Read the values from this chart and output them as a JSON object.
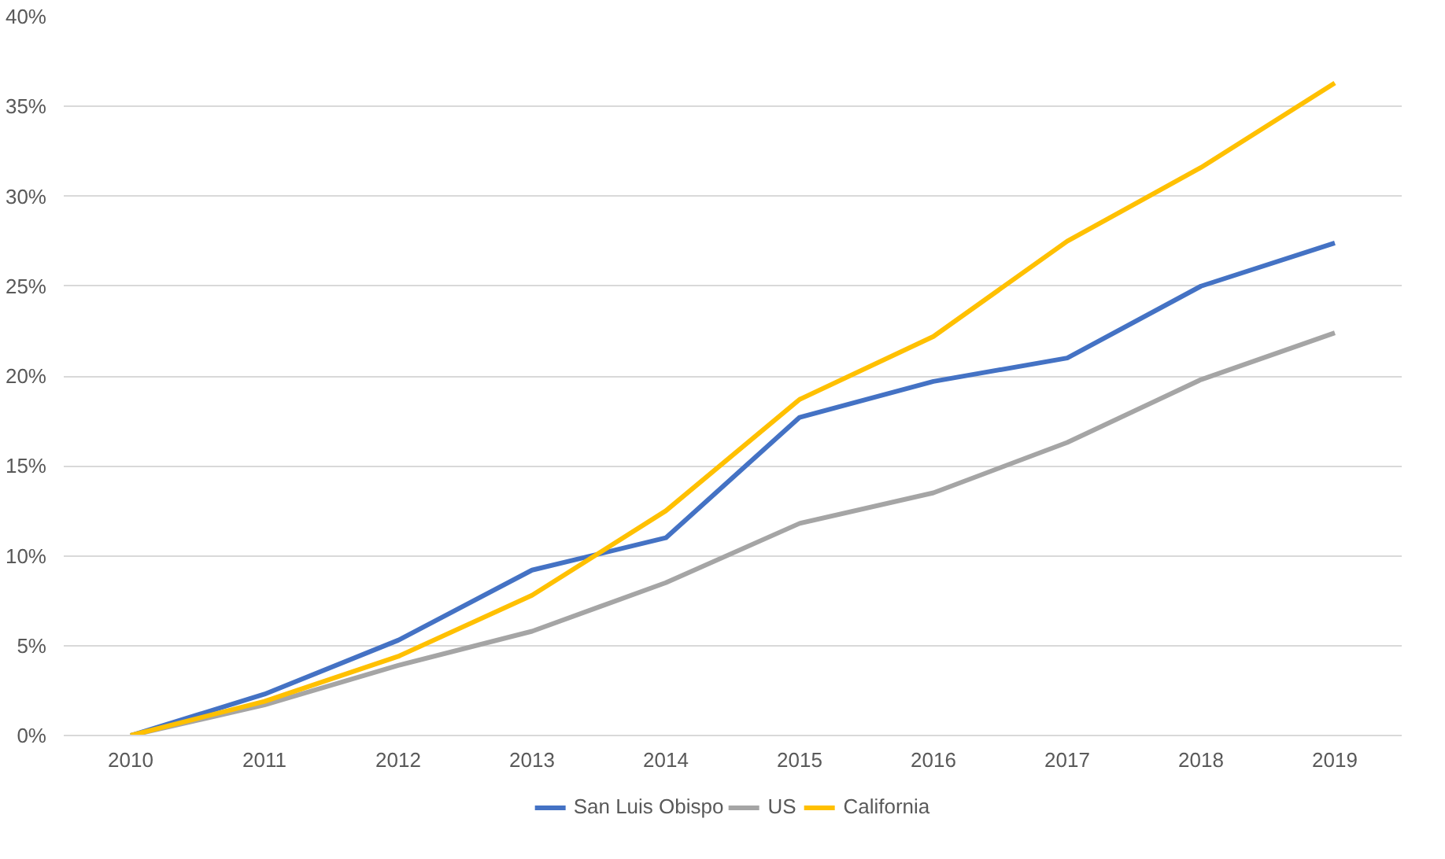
{
  "chart_data": {
    "type": "line",
    "categories": [
      "2010",
      "2011",
      "2012",
      "2013",
      "2014",
      "2015",
      "2016",
      "2017",
      "2018",
      "2019"
    ],
    "series": [
      {
        "name": "San Luis Obispo",
        "color": "#4472c4",
        "values": [
          0,
          2.3,
          5.3,
          9.2,
          11.0,
          17.7,
          19.7,
          21.0,
          25.0,
          27.4
        ]
      },
      {
        "name": "US",
        "color": "#a5a5a5",
        "values": [
          0,
          1.7,
          3.9,
          5.8,
          8.5,
          11.8,
          13.5,
          16.3,
          19.8,
          22.4
        ]
      },
      {
        "name": "California",
        "color": "#ffc000",
        "values": [
          0,
          1.9,
          4.4,
          7.8,
          12.5,
          18.7,
          22.2,
          27.5,
          31.6,
          36.3
        ]
      }
    ],
    "ylim": [
      0,
      40
    ],
    "yticks": [
      {
        "value": 0,
        "label": "0%"
      },
      {
        "value": 5,
        "label": "5%"
      },
      {
        "value": 10,
        "label": "10%"
      },
      {
        "value": 15,
        "label": "15%"
      },
      {
        "value": 20,
        "label": "20%"
      },
      {
        "value": 25,
        "label": "25%"
      },
      {
        "value": 30,
        "label": "30%"
      },
      {
        "value": 35,
        "label": "35%"
      },
      {
        "value": 40,
        "label": "40%"
      }
    ],
    "grid": "y",
    "legend": "bottom",
    "marker": "none",
    "line_style": "solid"
  }
}
